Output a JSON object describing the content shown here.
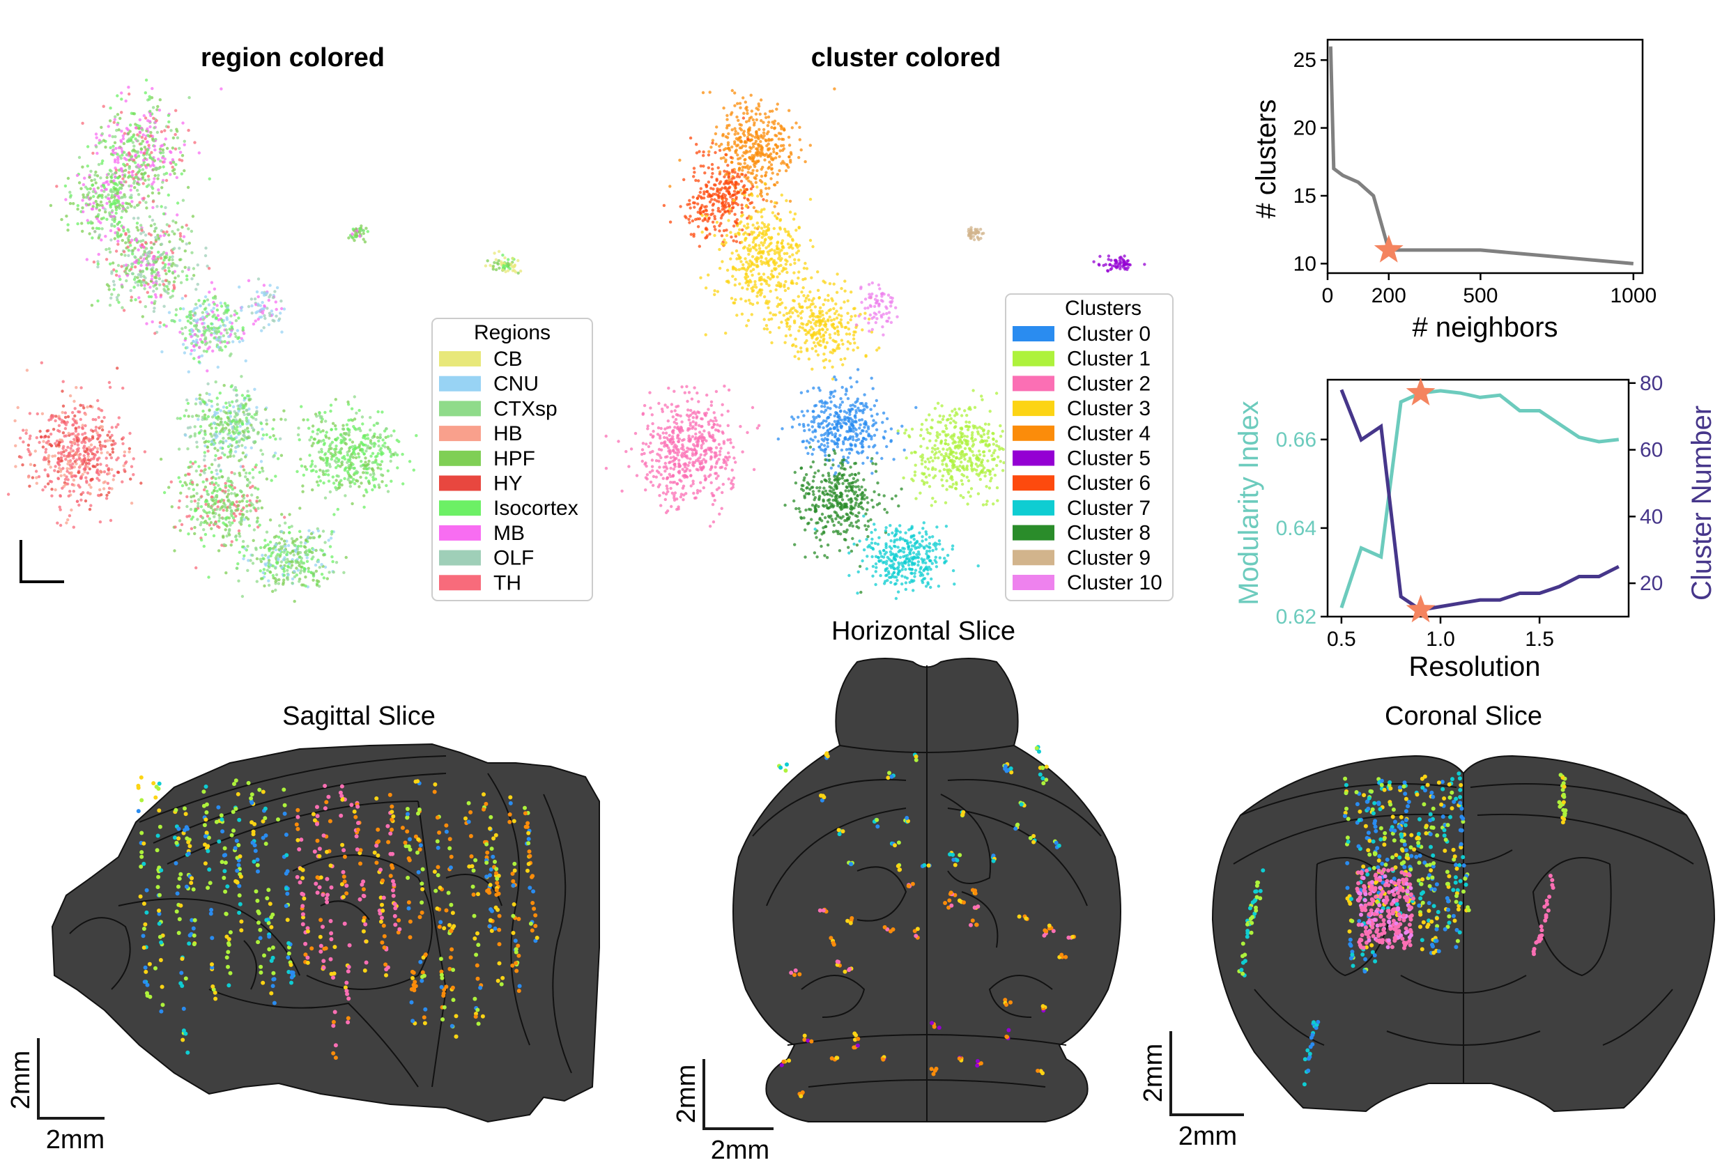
{
  "panels": {
    "umap_region": {
      "title": "region colored",
      "legend_title": "Regions",
      "legend": [
        {
          "label": "CB",
          "color": "#e8e87a"
        },
        {
          "label": "CNU",
          "color": "#98d3f4"
        },
        {
          "label": "CTXsp",
          "color": "#8fdb8a"
        },
        {
          "label": "HB",
          "color": "#f9a08c"
        },
        {
          "label": "HPF",
          "color": "#7fcf55"
        },
        {
          "label": "HY",
          "color": "#e8473f"
        },
        {
          "label": "Isocortex",
          "color": "#6cf065"
        },
        {
          "label": "MB",
          "color": "#f86df2"
        },
        {
          "label": "OLF",
          "color": "#9fcfb8"
        },
        {
          "label": "TH",
          "color": "#f86b7b"
        }
      ]
    },
    "umap_cluster": {
      "title": "cluster colored",
      "legend_title": "Clusters",
      "legend": [
        {
          "label": "Cluster 0",
          "color": "#2a8cf0"
        },
        {
          "label": "Cluster 1",
          "color": "#aef23c"
        },
        {
          "label": "Cluster 2",
          "color": "#fb6fb4"
        },
        {
          "label": "Cluster 3",
          "color": "#fcd414"
        },
        {
          "label": "Cluster 4",
          "color": "#fb8c0a"
        },
        {
          "label": "Cluster 5",
          "color": "#9400d3"
        },
        {
          "label": "Cluster 6",
          "color": "#fd4a0e"
        },
        {
          "label": "Cluster 7",
          "color": "#0fcdd2"
        },
        {
          "label": "Cluster 8",
          "color": "#2a8c2a"
        },
        {
          "label": "Cluster 9",
          "color": "#d2b48c"
        },
        {
          "label": "Cluster 10",
          "color": "#ee82ee"
        }
      ]
    },
    "slices": {
      "sagittal_title": "Sagittal Slice",
      "horizontal_title": "Horizontal Slice",
      "coronal_title": "Coronal Slice",
      "scale_label": "2mm"
    }
  },
  "chart_data": [
    {
      "type": "line",
      "title": "",
      "xlabel": "# neighbors",
      "ylabel": "# clusters",
      "xlim": [
        0,
        1030
      ],
      "ylim": [
        9.3,
        26.5
      ],
      "xticks": [
        0,
        200,
        500,
        1000
      ],
      "yticks": [
        10,
        15,
        20,
        25
      ],
      "series": [
        {
          "values_x": [
            10,
            20,
            50,
            100,
            150,
            200,
            300,
            400,
            500,
            1000
          ],
          "values_y": [
            26,
            17,
            16.5,
            16,
            15,
            11,
            11,
            11,
            11,
            10
          ],
          "color": "#808080"
        }
      ],
      "marker": {
        "x": 200,
        "y": 11,
        "shape": "star",
        "color": "#f4845f"
      }
    },
    {
      "type": "line",
      "title": "",
      "xlabel": "Resolution",
      "ylabel": "Modularity Index",
      "ylabel_right": "Cluster Number",
      "xlim": [
        0.43,
        1.95
      ],
      "ylim": [
        0.62,
        0.6735
      ],
      "ylim_right": [
        10,
        81
      ],
      "xticks": [
        0.5,
        1.0,
        1.5
      ],
      "yticks": [
        0.62,
        0.64,
        0.66
      ],
      "yticks_right": [
        20,
        40,
        60,
        80
      ],
      "series": [
        {
          "axis": "left",
          "color": "#6ccbbd",
          "values_x": [
            0.5,
            0.6,
            0.7,
            0.8,
            0.9,
            1.0,
            1.1,
            1.2,
            1.3,
            1.4,
            1.5,
            1.6,
            1.7,
            1.8,
            1.9
          ],
          "values_y": [
            0.622,
            0.6355,
            0.6335,
            0.6685,
            0.6705,
            0.671,
            0.6705,
            0.6695,
            0.67,
            0.6665,
            0.6665,
            0.6635,
            0.6605,
            0.6595,
            0.66
          ]
        },
        {
          "axis": "right",
          "color": "#46368a",
          "values_x": [
            0.5,
            0.6,
            0.7,
            0.8,
            0.9,
            1.0,
            1.1,
            1.2,
            1.3,
            1.4,
            1.5,
            1.6,
            1.7,
            1.8,
            1.9
          ],
          "values_y": [
            78,
            63,
            67,
            16,
            12,
            13,
            14,
            15,
            15,
            17,
            17,
            19,
            22,
            22,
            25
          ]
        }
      ],
      "markers": [
        {
          "x": 0.9,
          "y": 0.6705,
          "axis": "left",
          "shape": "star",
          "color": "#f4845f"
        },
        {
          "x": 0.9,
          "y": 12,
          "axis": "right",
          "shape": "star",
          "color": "#f4845f"
        }
      ]
    }
  ]
}
